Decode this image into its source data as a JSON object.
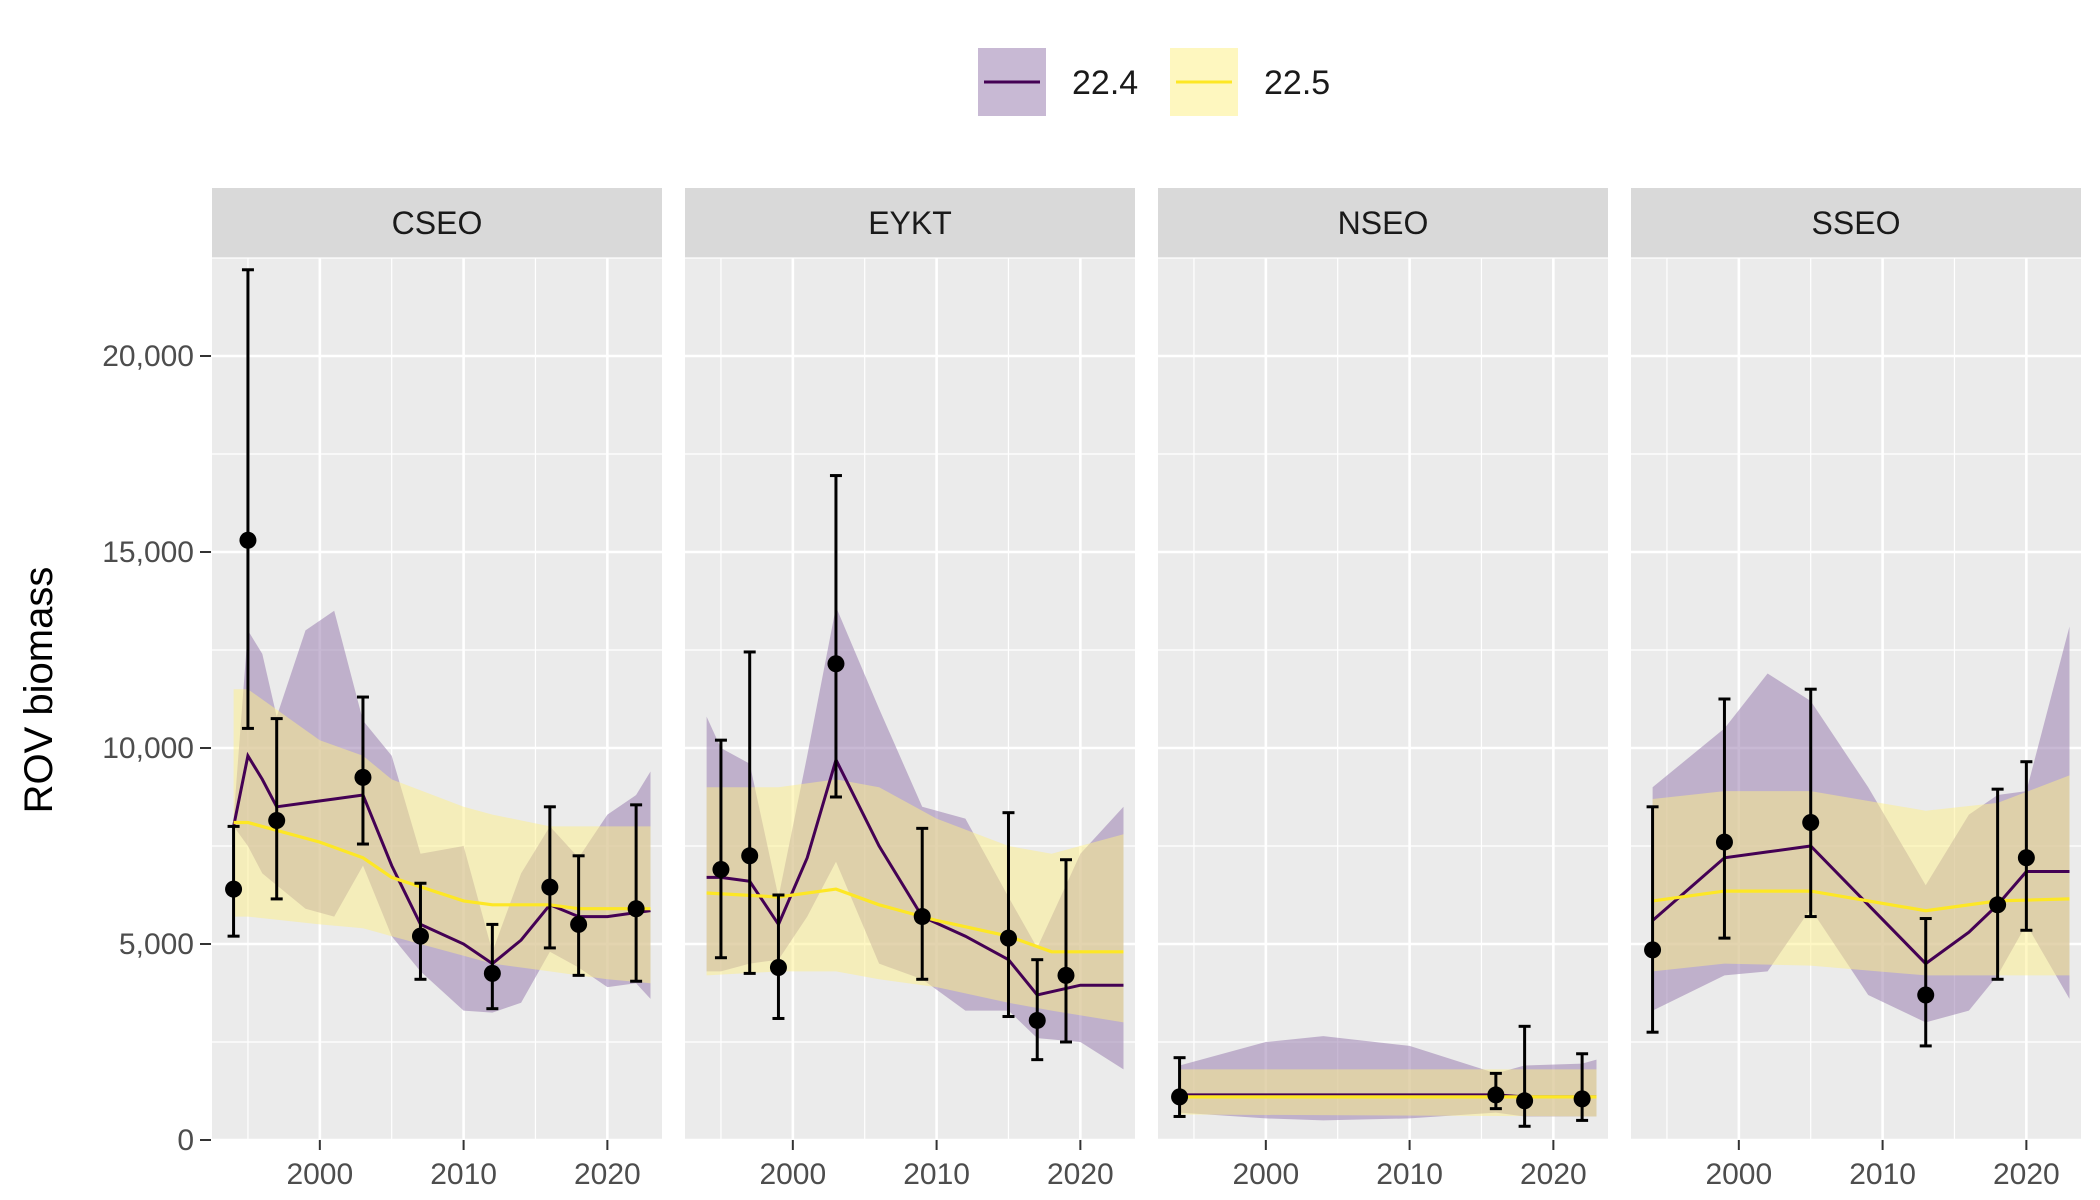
{
  "chart_data": {
    "type": "line",
    "ylabel": "ROV biomass",
    "xlabel": "",
    "ylim": [
      0,
      22500
    ],
    "xlim": [
      1992.5,
      2023.8
    ],
    "y_ticks": [
      0,
      5000,
      10000,
      15000,
      20000
    ],
    "y_tick_labels": [
      "0",
      "5,000",
      "10,000",
      "15,000",
      "20,000"
    ],
    "x_ticks": [
      2000,
      2010,
      2020
    ],
    "x_tick_labels": [
      "2000",
      "2010",
      "2020"
    ],
    "grid": true,
    "legend": {
      "placement": "top",
      "entries": [
        {
          "label": "22.4",
          "color": "#440154",
          "fill": "#9b7fb0"
        },
        {
          "label": "22.5",
          "color": "#fde725",
          "fill": "#fdf08a"
        }
      ]
    },
    "panels": [
      {
        "name": "CSEO",
        "observed": [
          {
            "x": 1994,
            "y": 6400,
            "lo": 5200,
            "hi": 8000
          },
          {
            "x": 1995,
            "y": 15300,
            "lo": 10500,
            "hi": 22200
          },
          {
            "x": 1997,
            "y": 8150,
            "lo": 6150,
            "hi": 10750
          },
          {
            "x": 2003,
            "y": 9250,
            "lo": 7550,
            "hi": 11300
          },
          {
            "x": 2007,
            "y": 5200,
            "lo": 4100,
            "hi": 6550
          },
          {
            "x": 2012,
            "y": 4250,
            "lo": 3350,
            "hi": 5500
          },
          {
            "x": 2016,
            "y": 6450,
            "lo": 4900,
            "hi": 8500
          },
          {
            "x": 2018,
            "y": 5500,
            "lo": 4200,
            "hi": 7250
          },
          {
            "x": 2022,
            "y": 5900,
            "lo": 4050,
            "hi": 8550
          }
        ],
        "series": [
          {
            "name": "22.4",
            "x": [
              1994,
              1995,
              1996,
              1997,
              1999,
              2001,
              2003,
              2005,
              2007,
              2010,
              2012,
              2014,
              2016,
              2018,
              2020,
              2022,
              2023
            ],
            "y": [
              8000,
              9800,
              9200,
              8500,
              8600,
              8700,
              8800,
              7000,
              5500,
              5000,
              4500,
              5100,
              6000,
              5700,
              5700,
              5800,
              5850
            ],
            "lo": [
              8000,
              7500,
              6800,
              6500,
              5900,
              5700,
              7000,
              5200,
              4300,
              3300,
              3250,
              3500,
              4800,
              4400,
              3900,
              4000,
              3600
            ],
            "hi": [
              8200,
              13000,
              12400,
              10800,
              13000,
              13500,
              10700,
              9800,
              7300,
              7500,
              4800,
              6800,
              8000,
              7200,
              8300,
              8800,
              9400
            ]
          },
          {
            "name": "22.5",
            "x": [
              1994,
              1995,
              2000,
              2003,
              2005,
              2010,
              2012,
              2016,
              2018,
              2020,
              2023
            ],
            "y": [
              8100,
              8100,
              7600,
              7200,
              6700,
              6100,
              6000,
              6000,
              5900,
              5900,
              5900
            ],
            "lo": [
              5700,
              5700,
              5500,
              5400,
              5200,
              4700,
              4500,
              4300,
              4200,
              4100,
              4000
            ],
            "hi": [
              11500,
              11500,
              10200,
              9800,
              9200,
              8500,
              8300,
              8000,
              8000,
              8000,
              8000
            ]
          }
        ]
      },
      {
        "name": "EYKT",
        "observed": [
          {
            "x": 1995,
            "y": 6900,
            "lo": 4650,
            "hi": 10200
          },
          {
            "x": 1997,
            "y": 7250,
            "lo": 4250,
            "hi": 12450
          },
          {
            "x": 1999,
            "y": 4400,
            "lo": 3100,
            "hi": 6250
          },
          {
            "x": 2003,
            "y": 12150,
            "lo": 8750,
            "hi": 16950
          },
          {
            "x": 2009,
            "y": 5700,
            "lo": 4100,
            "hi": 7950
          },
          {
            "x": 2015,
            "y": 5150,
            "lo": 3150,
            "hi": 8350
          },
          {
            "x": 2017,
            "y": 3050,
            "lo": 2050,
            "hi": 4600
          },
          {
            "x": 2019,
            "y": 4200,
            "lo": 2500,
            "hi": 7150
          }
        ],
        "series": [
          {
            "name": "22.4",
            "x": [
              1994,
              1995,
              1997,
              1999,
              2001,
              2003,
              2006,
              2009,
              2012,
              2015,
              2017,
              2020,
              2023
            ],
            "y": [
              6700,
              6700,
              6600,
              5500,
              7200,
              9700,
              7500,
              5700,
              5200,
              4600,
              3700,
              3950,
              3950
            ],
            "lo": [
              4300,
              4300,
              4500,
              4600,
              5700,
              7100,
              4500,
              4100,
              3300,
              3300,
              2600,
              2500,
              1800
            ],
            "hi": [
              10800,
              10000,
              9600,
              6200,
              9800,
              13600,
              11000,
              8500,
              8200,
              6200,
              4900,
              7300,
              8500
            ]
          },
          {
            "name": "22.5",
            "x": [
              1994,
              1999,
              2003,
              2006,
              2010,
              2015,
              2018,
              2023
            ],
            "y": [
              6300,
              6200,
              6400,
              6000,
              5600,
              5200,
              4800,
              4800
            ],
            "lo": [
              4200,
              4300,
              4300,
              4100,
              3900,
              3500,
              3300,
              3000
            ],
            "hi": [
              9000,
              9000,
              9200,
              9000,
              8200,
              7500,
              7300,
              7800
            ]
          }
        ]
      },
      {
        "name": "NSEO",
        "observed": [
          {
            "x": 1994,
            "y": 1100,
            "lo": 600,
            "hi": 2100
          },
          {
            "x": 2016,
            "y": 1150,
            "lo": 800,
            "hi": 1700
          },
          {
            "x": 2018,
            "y": 1000,
            "lo": 350,
            "hi": 2900
          },
          {
            "x": 2022,
            "y": 1050,
            "lo": 500,
            "hi": 2200
          }
        ],
        "series": [
          {
            "name": "22.4",
            "x": [
              1994,
              2000,
              2004,
              2010,
              2016,
              2018,
              2022,
              2023
            ],
            "y": [
              1150,
              1150,
              1150,
              1150,
              1150,
              1100,
              1100,
              1100
            ],
            "lo": [
              700,
              550,
              500,
              550,
              700,
              600,
              600,
              600
            ],
            "hi": [
              1900,
              2500,
              2650,
              2400,
              1700,
              1900,
              1950,
              2050
            ]
          },
          {
            "name": "22.5",
            "x": [
              1994,
              2023
            ],
            "y": [
              1100,
              1100
            ],
            "lo": [
              650,
              600
            ],
            "hi": [
              1800,
              1800
            ]
          }
        ]
      },
      {
        "name": "SSEO",
        "observed": [
          {
            "x": 1994,
            "y": 4850,
            "lo": 2750,
            "hi": 8500
          },
          {
            "x": 1999,
            "y": 7600,
            "lo": 5150,
            "hi": 11250
          },
          {
            "x": 2005,
            "y": 8100,
            "lo": 5700,
            "hi": 11500
          },
          {
            "x": 2013,
            "y": 3700,
            "lo": 2400,
            "hi": 5650
          },
          {
            "x": 2018,
            "y": 6000,
            "lo": 4100,
            "hi": 8950
          },
          {
            "x": 2020,
            "y": 7200,
            "lo": 5350,
            "hi": 9650
          }
        ],
        "series": [
          {
            "name": "22.4",
            "x": [
              1994,
              1999,
              2002,
              2005,
              2009,
              2013,
              2016,
              2018,
              2020,
              2023
            ],
            "y": [
              5600,
              7200,
              7350,
              7500,
              6000,
              4500,
              5300,
              6000,
              6850,
              6850
            ],
            "lo": [
              3300,
              4200,
              4300,
              5900,
              3700,
              3000,
              3300,
              4200,
              5500,
              3600
            ],
            "hi": [
              9000,
              10500,
              11900,
              11200,
              9000,
              6500,
              8300,
              8800,
              8900,
              13100
            ]
          },
          {
            "name": "22.5",
            "x": [
              1994,
              1999,
              2005,
              2013,
              2018,
              2023
            ],
            "y": [
              6100,
              6350,
              6350,
              5850,
              6100,
              6150
            ],
            "lo": [
              4300,
              4500,
              4450,
              4200,
              4200,
              4200
            ],
            "hi": [
              8700,
              8900,
              8900,
              8400,
              8600,
              9300
            ]
          }
        ]
      }
    ]
  }
}
